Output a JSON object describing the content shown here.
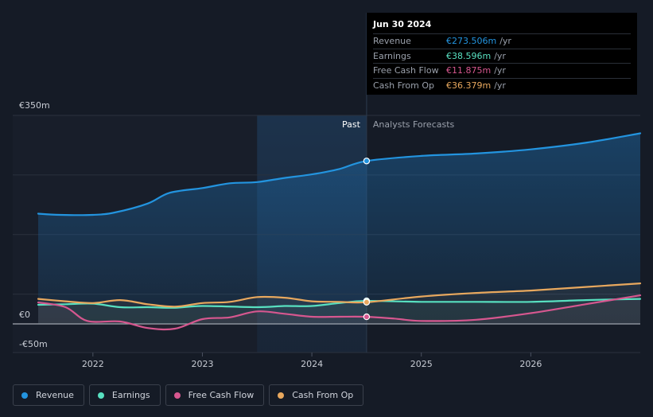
{
  "chart_data": {
    "type": "line",
    "y_axis_labels": [
      "€350m",
      "€0",
      "-€50m"
    ],
    "ylim": [
      -50,
      350
    ],
    "xlim": [
      2021.5,
      2027.0
    ],
    "x_ticks": [
      2022,
      2023,
      2024,
      2025,
      2026
    ],
    "x_tick_labels": [
      "2022",
      "2023",
      "2024",
      "2025",
      "2026"
    ],
    "divider_x": 2024.5,
    "highlight_start_x": 2023.5,
    "region_labels": {
      "past": "Past",
      "forecast": "Analysts Forecasts"
    },
    "series": [
      {
        "name": "Revenue",
        "color": "#2394df",
        "fill": true,
        "points": [
          [
            2021.5,
            185
          ],
          [
            2021.7,
            183
          ],
          [
            2022.0,
            183
          ],
          [
            2022.2,
            187
          ],
          [
            2022.5,
            202
          ],
          [
            2022.7,
            220
          ],
          [
            2023.0,
            228
          ],
          [
            2023.25,
            236
          ],
          [
            2023.5,
            238
          ],
          [
            2023.75,
            245
          ],
          [
            2024.0,
            251
          ],
          [
            2024.25,
            260
          ],
          [
            2024.5,
            273.5
          ],
          [
            2025.0,
            282
          ],
          [
            2025.5,
            286
          ],
          [
            2026.0,
            293
          ],
          [
            2026.5,
            304
          ],
          [
            2027.0,
            320
          ]
        ]
      },
      {
        "name": "Earnings",
        "color": "#58e0c0",
        "fill": false,
        "points": [
          [
            2021.5,
            32
          ],
          [
            2021.75,
            33
          ],
          [
            2022.0,
            34
          ],
          [
            2022.25,
            28
          ],
          [
            2022.5,
            28
          ],
          [
            2022.75,
            27
          ],
          [
            2023.0,
            30
          ],
          [
            2023.5,
            28
          ],
          [
            2023.75,
            30
          ],
          [
            2024.0,
            30
          ],
          [
            2024.25,
            35
          ],
          [
            2024.5,
            38.6
          ],
          [
            2025.0,
            37
          ],
          [
            2025.5,
            37
          ],
          [
            2026.0,
            37
          ],
          [
            2026.5,
            40
          ],
          [
            2027.0,
            42
          ]
        ]
      },
      {
        "name": "Free Cash Flow",
        "color": "#d6578f",
        "fill": false,
        "points": [
          [
            2021.5,
            36
          ],
          [
            2021.75,
            28
          ],
          [
            2021.95,
            5
          ],
          [
            2022.25,
            4
          ],
          [
            2022.5,
            -7
          ],
          [
            2022.75,
            -8
          ],
          [
            2023.0,
            8
          ],
          [
            2023.25,
            11
          ],
          [
            2023.5,
            21
          ],
          [
            2023.75,
            17
          ],
          [
            2024.0,
            12
          ],
          [
            2024.25,
            12
          ],
          [
            2024.5,
            11.9
          ],
          [
            2024.75,
            9
          ],
          [
            2025.0,
            5
          ],
          [
            2025.5,
            7
          ],
          [
            2026.0,
            18
          ],
          [
            2026.5,
            33
          ],
          [
            2027.0,
            48
          ]
        ]
      },
      {
        "name": "Cash From Op",
        "color": "#e8a85e",
        "fill": false,
        "points": [
          [
            2021.5,
            42
          ],
          [
            2021.75,
            38
          ],
          [
            2022.0,
            35
          ],
          [
            2022.25,
            40
          ],
          [
            2022.5,
            33
          ],
          [
            2022.75,
            29
          ],
          [
            2023.0,
            35
          ],
          [
            2023.25,
            37
          ],
          [
            2023.5,
            45
          ],
          [
            2023.75,
            44
          ],
          [
            2024.0,
            38
          ],
          [
            2024.25,
            37
          ],
          [
            2024.5,
            36.4
          ],
          [
            2025.0,
            46
          ],
          [
            2025.5,
            52
          ],
          [
            2026.0,
            56
          ],
          [
            2026.5,
            62
          ],
          [
            2027.0,
            68
          ]
        ]
      }
    ]
  },
  "tooltip": {
    "date": "Jun 30 2024",
    "rows": [
      {
        "label": "Revenue",
        "value": "€273.506m",
        "unit": "/yr",
        "color": "#2394df"
      },
      {
        "label": "Earnings",
        "value": "€38.596m",
        "unit": "/yr",
        "color": "#58e0c0"
      },
      {
        "label": "Free Cash Flow",
        "value": "€11.875m",
        "unit": "/yr",
        "color": "#d6578f"
      },
      {
        "label": "Cash From Op",
        "value": "€36.379m",
        "unit": "/yr",
        "color": "#e8a85e"
      }
    ]
  },
  "legend": [
    {
      "label": "Revenue",
      "color": "#2394df"
    },
    {
      "label": "Earnings",
      "color": "#58e0c0"
    },
    {
      "label": "Free Cash Flow",
      "color": "#d6578f"
    },
    {
      "label": "Cash From Op",
      "color": "#e8a85e"
    }
  ]
}
